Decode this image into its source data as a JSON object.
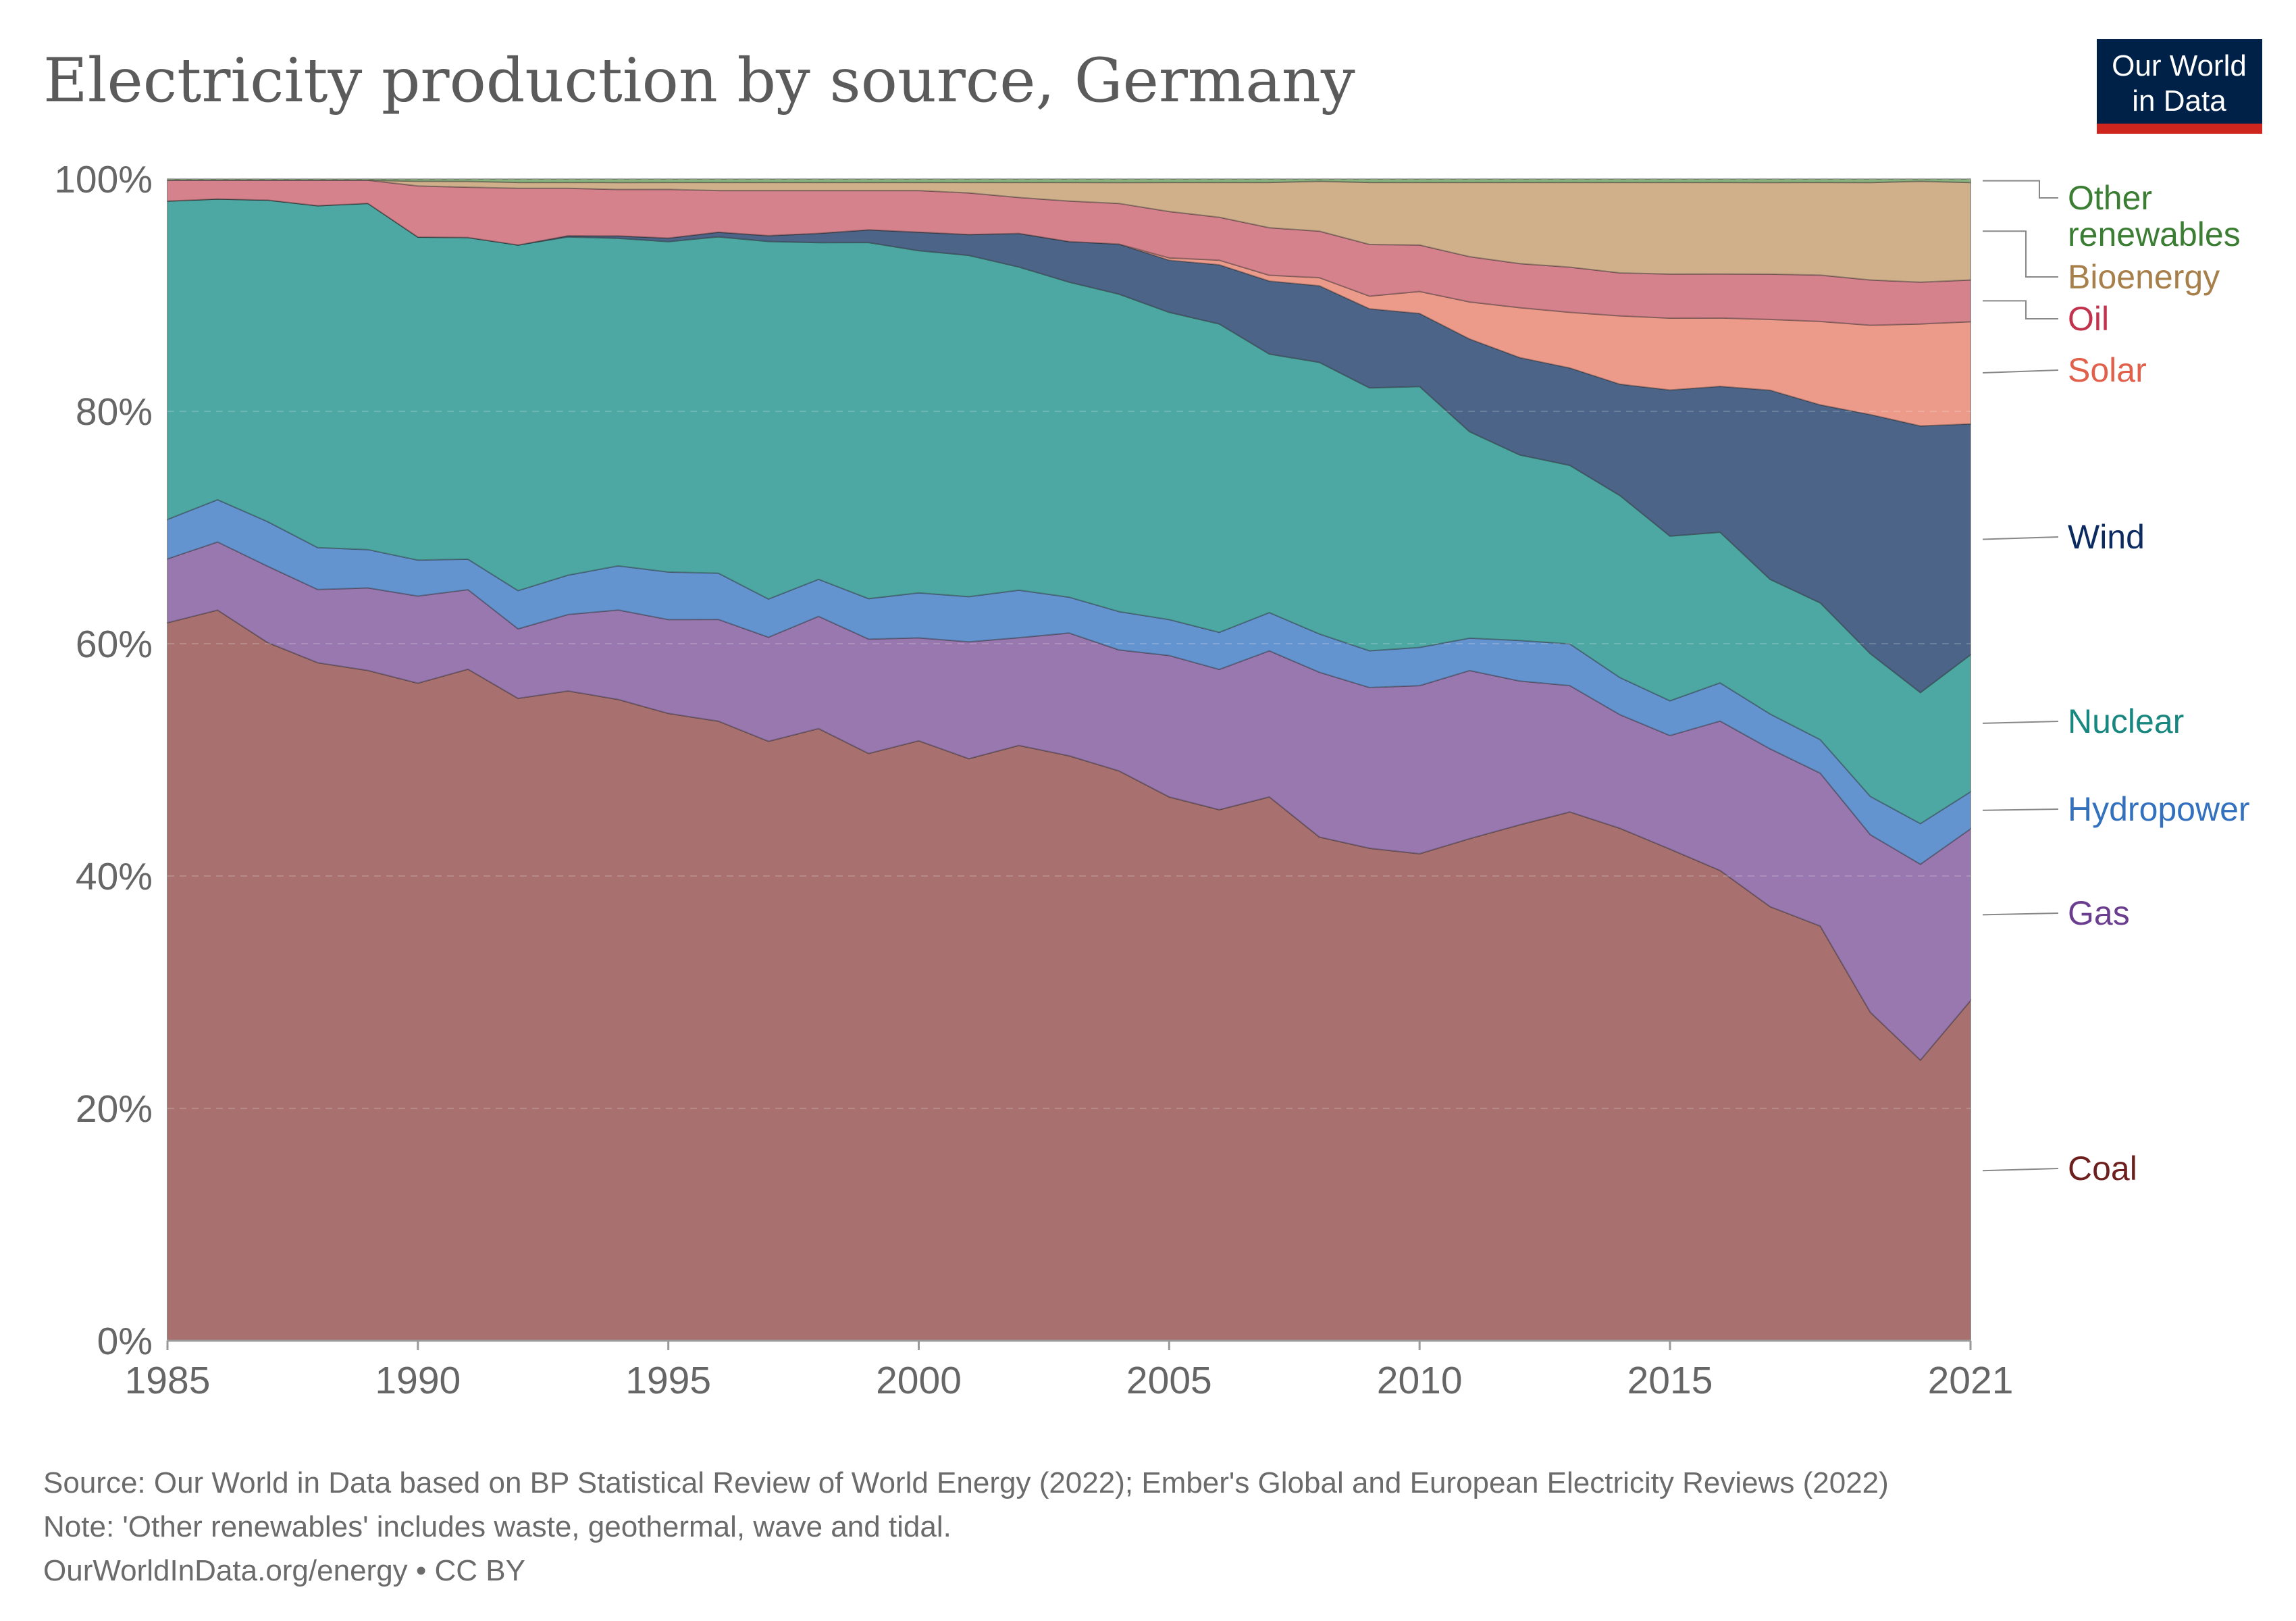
{
  "title": "Electricity production by source, Germany",
  "logo": {
    "line1": "Our World",
    "line2": "in Data",
    "bg": "#002147",
    "accent": "#ce261e"
  },
  "footer": {
    "source": "Source: Our World in Data based on BP Statistical Review of World Energy (2022); Ember's Global and European Electricity Reviews (2022)",
    "note": "Note: 'Other renewables' includes waste, geothermal, wave and tidal.",
    "url": "OurWorldInData.org/energy • CC BY"
  },
  "chart_data": {
    "type": "area",
    "stacked": true,
    "x": [
      1985,
      1986,
      1987,
      1988,
      1989,
      1990,
      1991,
      1992,
      1993,
      1994,
      1995,
      1996,
      1997,
      1998,
      1999,
      2000,
      2001,
      2002,
      2003,
      2004,
      2005,
      2006,
      2007,
      2008,
      2009,
      2010,
      2011,
      2012,
      2013,
      2014,
      2015,
      2016,
      2017,
      2018,
      2019,
      2020,
      2021
    ],
    "xlim": [
      1985,
      2021
    ],
    "x_ticks": [
      "1985",
      "1990",
      "1995",
      "2000",
      "2005",
      "2010",
      "2015",
      "2021"
    ],
    "x_tick_values": [
      1985,
      1990,
      1995,
      2000,
      2005,
      2010,
      2015,
      2021
    ],
    "ylim": [
      0,
      100
    ],
    "y_ticks": [
      "0%",
      "20%",
      "40%",
      "60%",
      "80%",
      "100%"
    ],
    "y_tick_values": [
      0,
      20,
      40,
      60,
      80,
      100
    ],
    "grid": true,
    "legend_placement": "right",
    "series": [
      {
        "name": "Coal",
        "color": "#a8706f",
        "label_color": "#6d1f1d",
        "values": [
          61.8,
          62.2,
          59.5,
          58.3,
          57.7,
          56.6,
          57.4,
          55.4,
          56.1,
          55.2,
          54.1,
          53.6,
          51.8,
          52.9,
          50.8,
          51.9,
          50.3,
          51.4,
          50.5,
          49.0,
          46.9,
          45.8,
          46.9,
          43.4,
          42.9,
          42.0,
          43.3,
          44.5,
          45.6,
          44.2,
          42.4,
          40.6,
          37.4,
          35.8,
          28.3,
          24.2,
          29.3
        ]
      },
      {
        "name": "Gas",
        "color": "#9978b0",
        "label_color": "#6b3d8e",
        "values": [
          5.5,
          5.8,
          6.5,
          6.3,
          7.1,
          7.5,
          6.8,
          6.0,
          6.6,
          7.7,
          8.1,
          8.8,
          9.0,
          9.7,
          9.9,
          8.9,
          10.1,
          9.3,
          10.6,
          10.4,
          12.2,
          12.1,
          12.6,
          14.2,
          14.0,
          14.5,
          14.5,
          12.4,
          10.9,
          9.8,
          9.8,
          12.9,
          13.6,
          13.2,
          15.3,
          16.9,
          14.8
        ]
      },
      {
        "name": "Hydropower",
        "color": "#6494d0",
        "label_color": "#3371be",
        "values": [
          3.4,
          3.6,
          3.8,
          3.6,
          3.3,
          3.1,
          2.6,
          3.3,
          3.4,
          3.8,
          4.1,
          4.0,
          3.3,
          3.2,
          3.5,
          3.9,
          3.9,
          4.1,
          3.1,
          3.3,
          3.1,
          3.2,
          3.3,
          3.3,
          3.2,
          3.3,
          2.8,
          3.5,
          3.6,
          3.2,
          3.0,
          3.3,
          3.0,
          2.9,
          3.3,
          3.5,
          3.2
        ]
      },
      {
        "name": "Nuclear",
        "color": "#4da8a4",
        "label_color": "#18877f",
        "values": [
          27.4,
          25.6,
          27.4,
          29.4,
          29.8,
          27.8,
          27.5,
          29.8,
          29.2,
          28.2,
          28.5,
          29.1,
          30.9,
          29.1,
          30.8,
          29.6,
          29.5,
          27.9,
          27.2,
          27.3,
          26.5,
          26.6,
          22.3,
          23.4,
          22.9,
          22.5,
          17.8,
          16.0,
          15.4,
          15.7,
          14.2,
          13.0,
          11.6,
          11.8,
          12.3,
          11.3,
          11.8
        ]
      },
      {
        "name": "Wind",
        "color": "#4b6488",
        "label_color": "#0a2a60",
        "values": [
          0,
          0,
          0,
          0,
          0,
          0,
          0,
          0,
          0.1,
          0.2,
          0.3,
          0.4,
          0.5,
          0.8,
          1.1,
          1.6,
          1.8,
          2.9,
          3.5,
          4.3,
          4.5,
          5.1,
          6.3,
          6.6,
          6.9,
          6.3,
          8.0,
          8.4,
          8.4,
          9.6,
          12.6,
          12.6,
          16.3,
          17.1,
          20.6,
          23.0,
          19.9
        ]
      },
      {
        "name": "Solar",
        "color": "#ec9a8a",
        "label_color": "#e0604b",
        "values": [
          0,
          0,
          0,
          0,
          0,
          0,
          0,
          0,
          0,
          0,
          0,
          0,
          0,
          0,
          0,
          0,
          0,
          0,
          0,
          0,
          0.2,
          0.4,
          0.5,
          0.7,
          1.1,
          1.9,
          3.2,
          4.3,
          4.8,
          5.9,
          6.2,
          5.9,
          6.1,
          7.2,
          7.7,
          8.8,
          8.8
        ]
      },
      {
        "name": "Oil",
        "color": "#d5828c",
        "label_color": "#c1334d",
        "values": [
          1.8,
          1.6,
          1.7,
          2.2,
          2.0,
          4.4,
          4.3,
          4.9,
          4.1,
          4.0,
          4.2,
          3.6,
          3.9,
          3.7,
          3.4,
          3.6,
          3.6,
          3.1,
          3.5,
          3.5,
          4.0,
          3.7,
          4.1,
          4.0,
          4.5,
          4.0,
          3.9,
          3.8,
          3.9,
          3.7,
          3.8,
          3.8,
          3.9,
          4.0,
          3.9,
          3.6,
          3.6
        ]
      },
      {
        "name": "Bioenergy",
        "color": "#cfb08b",
        "label_color": "#a77f4b",
        "values": [
          0,
          0,
          0,
          0,
          0,
          0.4,
          0.5,
          0.5,
          0.5,
          0.6,
          0.6,
          0.7,
          0.7,
          0.7,
          0.7,
          0.7,
          0.9,
          1.3,
          1.6,
          1.8,
          2.5,
          3.0,
          3.9,
          4.3,
          5.4,
          5.4,
          6.4,
          7.0,
          7.3,
          7.8,
          7.9,
          7.9,
          7.9,
          8.0,
          8.4,
          8.7,
          8.4
        ]
      },
      {
        "name": "Other renewables",
        "color": "#8ab27f",
        "label_color": "#3a7d33",
        "values": [
          0.1,
          0.1,
          0.1,
          0.1,
          0.1,
          0.2,
          0.2,
          0.3,
          0.3,
          0.3,
          0.3,
          0.3,
          0.3,
          0.3,
          0.3,
          0.3,
          0.3,
          0.3,
          0.3,
          0.3,
          0.3,
          0.3,
          0.3,
          0.2,
          0.3,
          0.3,
          0.3,
          0.3,
          0.3,
          0.3,
          0.3,
          0.3,
          0.3,
          0.3,
          0.3,
          0.2,
          0.3
        ]
      }
    ]
  }
}
